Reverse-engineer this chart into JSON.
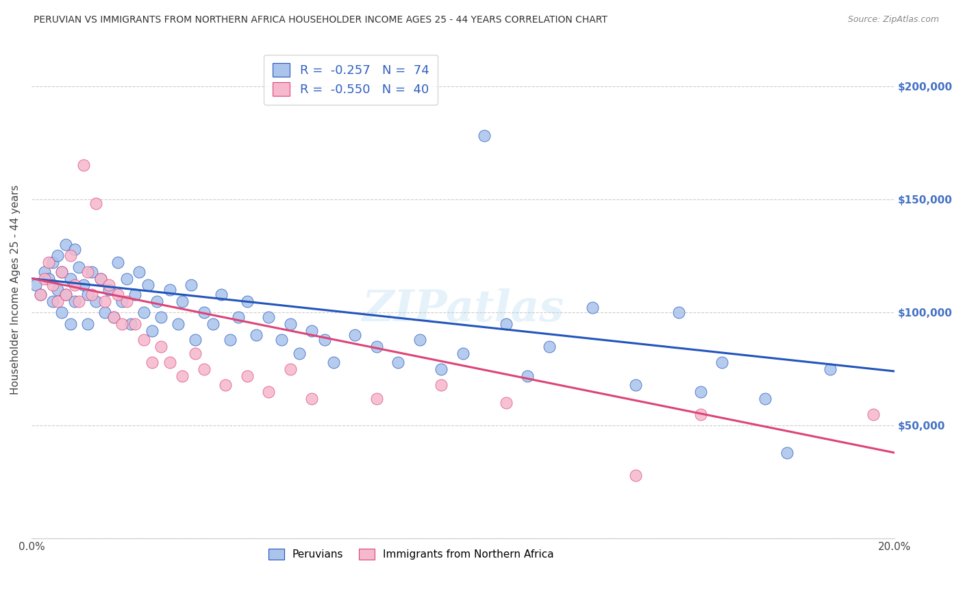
{
  "title": "PERUVIAN VS IMMIGRANTS FROM NORTHERN AFRICA HOUSEHOLDER INCOME AGES 25 - 44 YEARS CORRELATION CHART",
  "source": "Source: ZipAtlas.com",
  "xlabel": "",
  "ylabel": "Householder Income Ages 25 - 44 years",
  "legend_label1": "Peruvians",
  "legend_label2": "Immigrants from Northern Africa",
  "R1": -0.257,
  "N1": 74,
  "R2": -0.55,
  "N2": 40,
  "xlim": [
    0.0,
    0.2
  ],
  "ylim": [
    0,
    220000
  ],
  "yticks": [
    0,
    50000,
    100000,
    150000,
    200000
  ],
  "ytick_labels": [
    "",
    "$50,000",
    "$100,000",
    "$150,000",
    "$200,000"
  ],
  "color_blue": "#aac4ec",
  "color_pink": "#f5b8cc",
  "trendline_blue": "#2255bb",
  "trendline_pink": "#dd4477",
  "watermark": "ZIPatlas",
  "blue_points": [
    [
      0.001,
      112000
    ],
    [
      0.002,
      108000
    ],
    [
      0.003,
      118000
    ],
    [
      0.004,
      115000
    ],
    [
      0.005,
      122000
    ],
    [
      0.005,
      105000
    ],
    [
      0.006,
      125000
    ],
    [
      0.006,
      110000
    ],
    [
      0.007,
      118000
    ],
    [
      0.007,
      100000
    ],
    [
      0.008,
      130000
    ],
    [
      0.008,
      108000
    ],
    [
      0.009,
      115000
    ],
    [
      0.009,
      95000
    ],
    [
      0.01,
      128000
    ],
    [
      0.01,
      105000
    ],
    [
      0.011,
      120000
    ],
    [
      0.012,
      112000
    ],
    [
      0.013,
      108000
    ],
    [
      0.013,
      95000
    ],
    [
      0.014,
      118000
    ],
    [
      0.015,
      105000
    ],
    [
      0.016,
      115000
    ],
    [
      0.017,
      100000
    ],
    [
      0.018,
      110000
    ],
    [
      0.019,
      98000
    ],
    [
      0.02,
      122000
    ],
    [
      0.021,
      105000
    ],
    [
      0.022,
      115000
    ],
    [
      0.023,
      95000
    ],
    [
      0.024,
      108000
    ],
    [
      0.025,
      118000
    ],
    [
      0.026,
      100000
    ],
    [
      0.027,
      112000
    ],
    [
      0.028,
      92000
    ],
    [
      0.029,
      105000
    ],
    [
      0.03,
      98000
    ],
    [
      0.032,
      110000
    ],
    [
      0.034,
      95000
    ],
    [
      0.035,
      105000
    ],
    [
      0.037,
      112000
    ],
    [
      0.038,
      88000
    ],
    [
      0.04,
      100000
    ],
    [
      0.042,
      95000
    ],
    [
      0.044,
      108000
    ],
    [
      0.046,
      88000
    ],
    [
      0.048,
      98000
    ],
    [
      0.05,
      105000
    ],
    [
      0.052,
      90000
    ],
    [
      0.055,
      98000
    ],
    [
      0.058,
      88000
    ],
    [
      0.06,
      95000
    ],
    [
      0.062,
      82000
    ],
    [
      0.065,
      92000
    ],
    [
      0.068,
      88000
    ],
    [
      0.07,
      78000
    ],
    [
      0.075,
      90000
    ],
    [
      0.08,
      85000
    ],
    [
      0.085,
      78000
    ],
    [
      0.09,
      88000
    ],
    [
      0.095,
      75000
    ],
    [
      0.1,
      82000
    ],
    [
      0.105,
      178000
    ],
    [
      0.11,
      95000
    ],
    [
      0.115,
      72000
    ],
    [
      0.12,
      85000
    ],
    [
      0.13,
      102000
    ],
    [
      0.14,
      68000
    ],
    [
      0.15,
      100000
    ],
    [
      0.155,
      65000
    ],
    [
      0.16,
      78000
    ],
    [
      0.17,
      62000
    ],
    [
      0.175,
      38000
    ],
    [
      0.185,
      75000
    ]
  ],
  "pink_points": [
    [
      0.002,
      108000
    ],
    [
      0.003,
      115000
    ],
    [
      0.004,
      122000
    ],
    [
      0.005,
      112000
    ],
    [
      0.006,
      105000
    ],
    [
      0.007,
      118000
    ],
    [
      0.008,
      108000
    ],
    [
      0.009,
      125000
    ],
    [
      0.01,
      112000
    ],
    [
      0.011,
      105000
    ],
    [
      0.012,
      165000
    ],
    [
      0.013,
      118000
    ],
    [
      0.014,
      108000
    ],
    [
      0.015,
      148000
    ],
    [
      0.016,
      115000
    ],
    [
      0.017,
      105000
    ],
    [
      0.018,
      112000
    ],
    [
      0.019,
      98000
    ],
    [
      0.02,
      108000
    ],
    [
      0.021,
      95000
    ],
    [
      0.022,
      105000
    ],
    [
      0.024,
      95000
    ],
    [
      0.026,
      88000
    ],
    [
      0.028,
      78000
    ],
    [
      0.03,
      85000
    ],
    [
      0.032,
      78000
    ],
    [
      0.035,
      72000
    ],
    [
      0.038,
      82000
    ],
    [
      0.04,
      75000
    ],
    [
      0.045,
      68000
    ],
    [
      0.05,
      72000
    ],
    [
      0.055,
      65000
    ],
    [
      0.06,
      75000
    ],
    [
      0.065,
      62000
    ],
    [
      0.08,
      62000
    ],
    [
      0.095,
      68000
    ],
    [
      0.11,
      60000
    ],
    [
      0.14,
      28000
    ],
    [
      0.155,
      55000
    ],
    [
      0.195,
      55000
    ]
  ],
  "blue_trendline": [
    [
      0.0,
      115000
    ],
    [
      0.2,
      74000
    ]
  ],
  "pink_trendline": [
    [
      0.0,
      115000
    ],
    [
      0.2,
      38000
    ]
  ]
}
